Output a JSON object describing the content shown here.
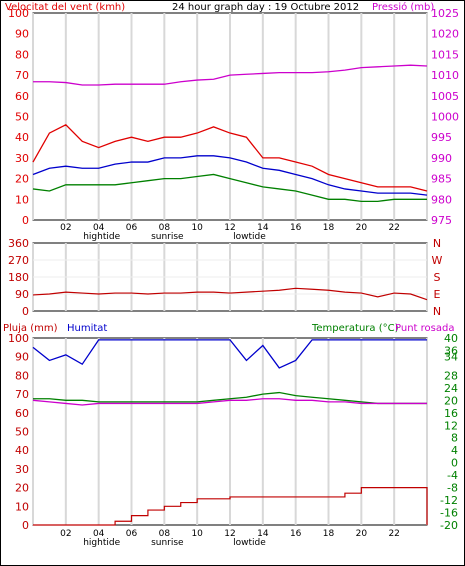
{
  "colors": {
    "red": "#e00000",
    "dark_red": "#c00000",
    "blue": "#0000cc",
    "green": "#008000",
    "magenta": "#cc00cc",
    "black": "#000000",
    "grid": "#d8d8d8"
  },
  "header": {
    "wind_label": "Velocitat del vent (kmh)",
    "title": "24 hour graph day : 19 Octubre 2012",
    "pressure_label": "Pressió (mb)"
  },
  "x_axis": {
    "hour_ticks": [
      "02",
      "04",
      "06",
      "08",
      "10",
      "12",
      "14",
      "16",
      "18",
      "20",
      "22",
      ""
    ],
    "events": [
      "hightide",
      "sunrise",
      "lowtide"
    ]
  },
  "humidity_header": {
    "rain_label": "Pluja (mm)",
    "humidity_label": "Humitat",
    "temp_label": "Temperatura (°C)",
    "dew_label": "Punt rosada"
  },
  "chart_data": [
    {
      "type": "line",
      "panel": "wind_pressure",
      "x_hours": [
        0,
        1,
        2,
        3,
        4,
        5,
        6,
        7,
        8,
        9,
        10,
        11,
        12,
        13,
        14,
        15,
        16,
        17,
        18,
        19,
        20,
        21,
        22,
        23,
        24
      ],
      "ylim_left": [
        0,
        100
      ],
      "yticks_left": [
        0,
        10,
        20,
        30,
        40,
        50,
        60,
        70,
        80,
        90,
        100
      ],
      "ylim_right": [
        975,
        1025
      ],
      "yticks_right": [
        975,
        980,
        985,
        990,
        995,
        1000,
        1005,
        1010,
        1015,
        1020,
        1025
      ],
      "series": [
        {
          "axis": "left",
          "values": [
            28,
            42,
            46,
            38,
            35,
            38,
            40,
            38,
            40,
            40,
            42,
            45,
            42,
            40,
            30,
            30,
            28,
            26,
            22,
            20,
            18,
            16,
            16,
            16,
            14
          ]
        },
        {
          "axis": "left",
          "values": [
            22,
            25,
            26,
            25,
            25,
            27,
            28,
            28,
            30,
            30,
            31,
            31,
            30,
            28,
            25,
            24,
            22,
            20,
            17,
            15,
            14,
            13,
            13,
            13,
            12
          ]
        },
        {
          "axis": "left",
          "values": [
            15,
            14,
            17,
            17,
            17,
            17,
            18,
            19,
            20,
            20,
            21,
            22,
            20,
            18,
            16,
            15,
            14,
            12,
            10,
            10,
            9,
            9,
            10,
            10,
            10
          ]
        },
        {
          "axis": "right",
          "values": [
            1008.4,
            1008.4,
            1008.2,
            1007.6,
            1007.6,
            1007.8,
            1007.8,
            1007.8,
            1007.8,
            1008.4,
            1008.8,
            1009.0,
            1010.0,
            1010.2,
            1010.4,
            1010.6,
            1010.6,
            1010.6,
            1010.8,
            1011.2,
            1011.8,
            1012.0,
            1012.2,
            1012.4,
            1012.2
          ]
        }
      ]
    },
    {
      "type": "line",
      "panel": "wind_direction",
      "x_hours": [
        0,
        1,
        2,
        3,
        4,
        5,
        6,
        7,
        8,
        9,
        10,
        11,
        12,
        13,
        14,
        15,
        16,
        17,
        18,
        19,
        20,
        21,
        22,
        23,
        24
      ],
      "ylim": [
        0,
        360
      ],
      "yticks": [
        0,
        90,
        180,
        270,
        360
      ],
      "direction_labels": [
        "N",
        "W",
        "S",
        "E",
        "N"
      ],
      "series": [
        {
          "values": [
            85,
            90,
            100,
            95,
            90,
            95,
            95,
            90,
            95,
            95,
            100,
            100,
            95,
            100,
            105,
            110,
            120,
            115,
            110,
            100,
            95,
            75,
            95,
            90,
            60
          ]
        }
      ]
    },
    {
      "type": "line",
      "panel": "humidity_temp_rain",
      "x_hours": [
        0,
        1,
        2,
        3,
        4,
        5,
        6,
        7,
        8,
        9,
        10,
        11,
        12,
        13,
        14,
        15,
        16,
        17,
        18,
        19,
        20,
        21,
        22,
        23,
        24
      ],
      "ylim_left": [
        0,
        100
      ],
      "yticks_left": [
        0,
        10,
        20,
        30,
        40,
        50,
        60,
        70,
        80,
        90,
        100
      ],
      "ylim_right": [
        -20,
        40
      ],
      "yticks_right": [
        -20,
        -16,
        -12,
        -8,
        -4,
        0,
        4,
        8,
        12,
        16,
        20,
        24,
        28,
        34,
        36,
        40
      ],
      "series": [
        {
          "axis": "left",
          "values": [
            95,
            88,
            91,
            86,
            99,
            99,
            99,
            99,
            99,
            99,
            99,
            99,
            99,
            88,
            96,
            84,
            88,
            99,
            99,
            99,
            99,
            99,
            99,
            99,
            99
          ]
        },
        {
          "axis": "right",
          "values": [
            20.5,
            20.5,
            20.0,
            20.0,
            19.5,
            19.5,
            19.5,
            19.5,
            19.5,
            19.5,
            19.5,
            20.0,
            20.5,
            21.0,
            22.0,
            22.5,
            21.5,
            21.0,
            20.5,
            20.0,
            19.5,
            19.0,
            19.0,
            19.0,
            19.0
          ]
        },
        {
          "axis": "right",
          "values": [
            20.0,
            19.5,
            19.0,
            18.5,
            19.0,
            19.0,
            19.0,
            19.0,
            19.0,
            19.0,
            19.0,
            19.5,
            20.0,
            20.0,
            20.5,
            20.5,
            20.0,
            20.0,
            19.5,
            19.5,
            19.0,
            19.0,
            19.0,
            19.0,
            19.0
          ]
        },
        {
          "axis": "left",
          "values": [
            0,
            0,
            0,
            0,
            0,
            2,
            5,
            8,
            10,
            12,
            14,
            14,
            15,
            15,
            15,
            15,
            15,
            15,
            15,
            17,
            20,
            20,
            20,
            20,
            0
          ]
        }
      ]
    }
  ]
}
